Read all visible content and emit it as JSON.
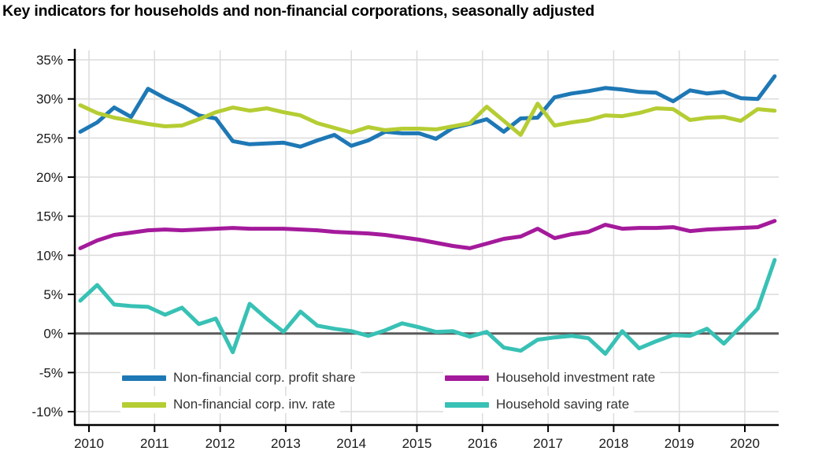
{
  "title": "Key indicators for households and non-financial corporations, seasonally adjusted",
  "chart_data": {
    "type": "line",
    "frequency": "quarterly",
    "x_start": "2010-Q1",
    "x_end": "2020-Q2",
    "title": "Key indicators for households and non-financial corporations, seasonally adjusted",
    "xlabel": "",
    "ylabel": "",
    "ylim": [
      -10,
      35
    ],
    "grid": true,
    "legend_position": "bottom-inside",
    "x_tick_labels": [
      "2010",
      "2011",
      "2012",
      "2013",
      "2014",
      "2015",
      "2016",
      "2017",
      "2018",
      "2019",
      "2020"
    ],
    "y_tick_labels": [
      "35%",
      "30%",
      "25%",
      "20%",
      "15%",
      "10%",
      "5%",
      "0%",
      "-5%",
      "-10%"
    ],
    "y_tick_values": [
      35,
      30,
      25,
      20,
      15,
      10,
      5,
      0,
      -5,
      -10
    ],
    "gridline_color": "#dcdcdc",
    "zero_line_color": "#5a5a5a",
    "axis_color": "#000000",
    "tick_label_color": "#1a1a1a",
    "series": [
      {
        "name": "Non-financial corp. profit share",
        "color": "#1e78b5",
        "values": [
          25.8,
          27.0,
          28.9,
          27.7,
          31.3,
          30.1,
          29.1,
          27.9,
          27.5,
          24.6,
          24.2,
          24.3,
          24.4,
          23.9,
          24.7,
          25.4,
          24.0,
          24.7,
          25.8,
          25.6,
          25.6,
          24.9,
          26.3,
          26.8,
          27.4,
          25.8,
          27.5,
          27.6,
          30.2,
          30.7,
          31.0,
          31.4,
          31.2,
          30.9,
          30.8,
          29.7,
          31.1,
          30.7,
          30.9,
          30.1,
          30.0,
          32.9
        ]
      },
      {
        "name": "Non-financial corp. inv. rate",
        "color": "#b5cd33",
        "values": [
          29.2,
          28.2,
          27.6,
          27.2,
          26.8,
          26.5,
          26.6,
          27.4,
          28.3,
          28.9,
          28.5,
          28.8,
          28.3,
          27.9,
          26.9,
          26.3,
          25.7,
          26.4,
          26.0,
          26.2,
          26.2,
          26.1,
          26.5,
          26.9,
          29.0,
          27.2,
          25.4,
          29.4,
          26.6,
          27.0,
          27.3,
          27.9,
          27.8,
          28.2,
          28.8,
          28.7,
          27.3,
          27.6,
          27.7,
          27.2,
          28.7,
          28.5
        ]
      },
      {
        "name": "Household investment rate",
        "color": "#a41a9b",
        "values": [
          10.9,
          11.9,
          12.6,
          12.9,
          13.2,
          13.3,
          13.2,
          13.3,
          13.4,
          13.5,
          13.4,
          13.4,
          13.4,
          13.3,
          13.2,
          13.0,
          12.9,
          12.8,
          12.6,
          12.3,
          12.0,
          11.6,
          11.2,
          10.9,
          11.5,
          12.1,
          12.4,
          13.4,
          12.2,
          12.7,
          13.0,
          13.9,
          13.4,
          13.5,
          13.5,
          13.6,
          13.1,
          13.3,
          13.4,
          13.5,
          13.6,
          14.4
        ]
      },
      {
        "name": "Household saving rate",
        "color": "#38c1b5",
        "values": [
          4.2,
          6.2,
          3.7,
          3.5,
          3.4,
          2.4,
          3.3,
          1.2,
          1.9,
          -2.4,
          3.8,
          1.9,
          0.2,
          2.8,
          1.0,
          0.6,
          0.3,
          -0.3,
          0.4,
          1.3,
          0.8,
          0.2,
          0.3,
          -0.4,
          0.2,
          -1.8,
          -2.2,
          -0.8,
          -0.5,
          -0.3,
          -0.6,
          -2.6,
          0.3,
          -1.9,
          -1.0,
          -0.2,
          -0.3,
          0.6,
          -1.3,
          0.9,
          3.2,
          9.4
        ]
      }
    ]
  }
}
